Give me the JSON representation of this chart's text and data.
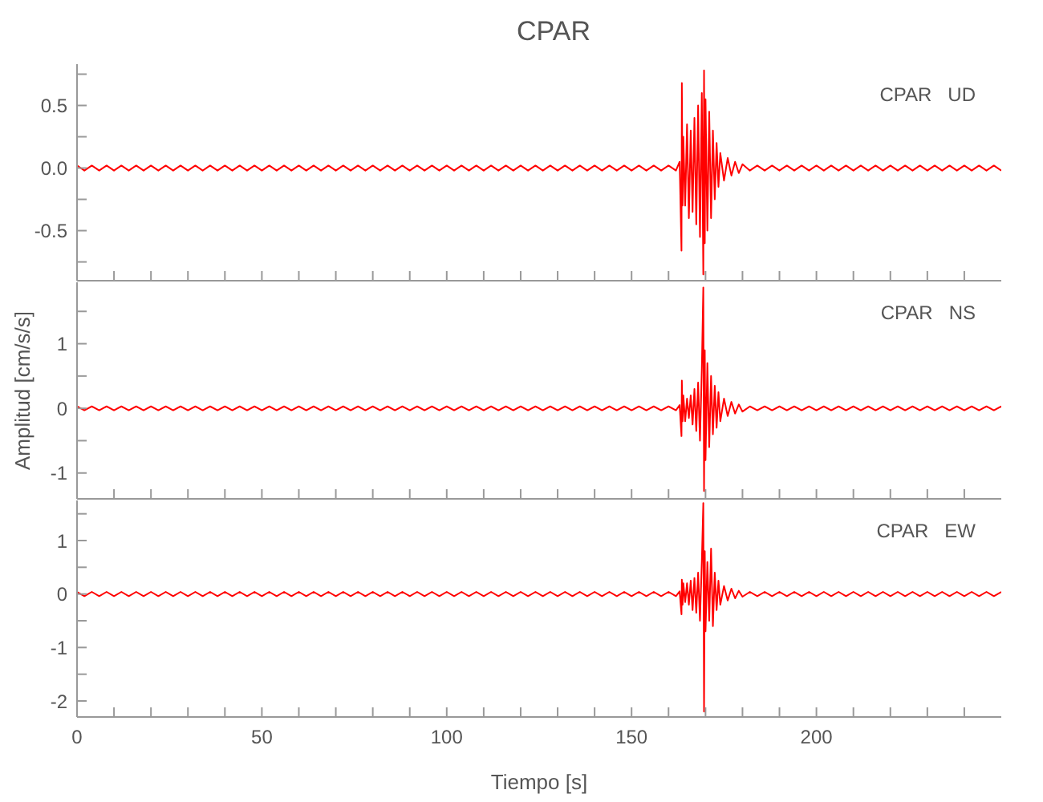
{
  "chart_data": [
    {
      "type": "line",
      "title": "CPAR",
      "annotations": [
        "CPAR   UD"
      ],
      "tick_labels": "y",
      "grid": false,
      "marker": "none",
      "line_style": "solid",
      "xlim": [
        0,
        250
      ],
      "xticks": [
        0,
        {
          "value": 10,
          "label": null
        },
        {
          "value": 20,
          "label": null
        },
        {
          "value": 30,
          "label": null
        },
        {
          "value": 40,
          "label": null
        },
        50,
        {
          "value": 60,
          "label": null
        },
        {
          "value": 70,
          "label": null
        },
        {
          "value": 80,
          "label": null
        },
        {
          "value": 90,
          "label": null
        },
        100,
        {
          "value": 110,
          "label": null
        },
        {
          "value": 120,
          "label": null
        },
        {
          "value": 130,
          "label": null
        },
        {
          "value": 140,
          "label": null
        },
        150,
        {
          "value": 160,
          "label": null
        },
        {
          "value": 170,
          "label": null
        },
        {
          "value": 180,
          "label": null
        },
        {
          "value": 190,
          "label": null
        },
        200,
        {
          "value": 210,
          "label": null
        },
        {
          "value": 220,
          "label": null
        },
        {
          "value": 230,
          "label": null
        },
        {
          "value": 240,
          "label": null
        }
      ],
      "ylim": [
        -0.9,
        0.83
      ],
      "yticks": [
        {
          "value": -0.75,
          "label": null
        },
        {
          "value": -0.5,
          "label": "-0.5"
        },
        {
          "value": -0.25,
          "label": null
        },
        {
          "value": 0,
          "label": "0.0"
        },
        {
          "value": 0.25,
          "label": null
        },
        {
          "value": 0.5,
          "label": "0.5"
        },
        {
          "value": 0.75,
          "label": null
        }
      ],
      "x": [
        0,
        2,
        4,
        6,
        8,
        10,
        12,
        14,
        16,
        18,
        20,
        22,
        24,
        26,
        28,
        30,
        32,
        34,
        36,
        38,
        40,
        42,
        44,
        46,
        48,
        50,
        52,
        54,
        56,
        58,
        60,
        62,
        64,
        66,
        68,
        70,
        72,
        74,
        76,
        78,
        80,
        82,
        84,
        86,
        88,
        90,
        92,
        94,
        96,
        98,
        100,
        102,
        104,
        106,
        108,
        110,
        112,
        114,
        116,
        118,
        120,
        122,
        124,
        126,
        128,
        130,
        132,
        134,
        136,
        138,
        140,
        142,
        144,
        146,
        148,
        150,
        152,
        154,
        156,
        158,
        160,
        162,
        163,
        163.5,
        163.6,
        163.8,
        164,
        164.5,
        165,
        165.5,
        166,
        166.5,
        167,
        167.5,
        168,
        168.5,
        169,
        169.4,
        169.6,
        169.8,
        170,
        170.5,
        171,
        171.5,
        172,
        172.5,
        173,
        173.5,
        174,
        175,
        176,
        177,
        178,
        179,
        180,
        182,
        184,
        186,
        188,
        190,
        192,
        194,
        196,
        198,
        200,
        202,
        204,
        206,
        208,
        210,
        212,
        214,
        216,
        218,
        220,
        222,
        224,
        226,
        228,
        230,
        232,
        234,
        236,
        238,
        240,
        242,
        244,
        246,
        248,
        250
      ],
      "series": [
        {
          "color": "#ff0000",
          "values": [
            0.02,
            -0.02,
            0.02,
            -0.02,
            0.02,
            -0.02,
            0.02,
            -0.02,
            0.02,
            -0.02,
            0.02,
            -0.02,
            0.02,
            -0.02,
            0.02,
            -0.02,
            0.02,
            -0.02,
            0.02,
            -0.02,
            0.02,
            -0.02,
            0.02,
            -0.02,
            0.02,
            -0.02,
            0.02,
            -0.02,
            0.02,
            -0.02,
            0.02,
            -0.02,
            0.02,
            -0.02,
            0.02,
            -0.02,
            0.02,
            -0.02,
            0.02,
            -0.02,
            0.02,
            -0.02,
            0.02,
            -0.02,
            0.02,
            -0.02,
            0.02,
            -0.02,
            0.02,
            -0.02,
            0.02,
            -0.02,
            0.02,
            -0.02,
            0.02,
            -0.02,
            0.02,
            -0.02,
            0.02,
            -0.02,
            0.02,
            -0.02,
            0.02,
            -0.02,
            0.02,
            -0.02,
            0.02,
            -0.02,
            0.02,
            -0.02,
            0.02,
            -0.02,
            0.02,
            -0.02,
            0.02,
            -0.02,
            0.02,
            -0.02,
            0.02,
            -0.02,
            0.02,
            -0.02,
            0.05,
            -0.66,
            0.68,
            -0.3,
            0.25,
            -0.3,
            0.35,
            -0.4,
            0.3,
            -0.35,
            0.4,
            -0.45,
            0.5,
            -0.55,
            0.6,
            -0.85,
            0.78,
            -0.6,
            0.55,
            -0.5,
            0.45,
            -0.4,
            0.3,
            -0.25,
            0.2,
            -0.15,
            0.12,
            -0.1,
            0.08,
            -0.06,
            0.05,
            -0.04,
            0.03,
            -0.02,
            0.02,
            -0.02,
            0.02,
            -0.02,
            0.02,
            -0.02,
            0.02,
            -0.02,
            0.02,
            -0.02,
            0.02,
            -0.02,
            0.02,
            -0.02,
            0.02,
            -0.02,
            0.02,
            -0.02,
            0.02,
            -0.02,
            0.02,
            -0.02,
            0.02,
            -0.02,
            0.02,
            -0.02,
            0.02,
            -0.02,
            0.02,
            -0.02,
            0.02,
            -0.02,
            0.02,
            -0.02
          ]
        }
      ]
    },
    {
      "type": "line",
      "ylabel": "Amplitud [cm/s/s]",
      "annotations": [
        "CPAR   NS"
      ],
      "tick_labels": "y",
      "grid": false,
      "marker": "none",
      "line_style": "solid",
      "xlim": [
        0,
        250
      ],
      "xticks": [
        0,
        {
          "value": 10,
          "label": null
        },
        {
          "value": 20,
          "label": null
        },
        {
          "value": 30,
          "label": null
        },
        {
          "value": 40,
          "label": null
        },
        50,
        {
          "value": 60,
          "label": null
        },
        {
          "value": 70,
          "label": null
        },
        {
          "value": 80,
          "label": null
        },
        {
          "value": 90,
          "label": null
        },
        100,
        {
          "value": 110,
          "label": null
        },
        {
          "value": 120,
          "label": null
        },
        {
          "value": 130,
          "label": null
        },
        {
          "value": 140,
          "label": null
        },
        150,
        {
          "value": 160,
          "label": null
        },
        {
          "value": 170,
          "label": null
        },
        {
          "value": 180,
          "label": null
        },
        {
          "value": 190,
          "label": null
        },
        200,
        {
          "value": 210,
          "label": null
        },
        {
          "value": 220,
          "label": null
        },
        {
          "value": 230,
          "label": null
        },
        {
          "value": 240,
          "label": null
        }
      ],
      "ylim": [
        -1.4,
        1.95
      ],
      "yticks": [
        {
          "value": -1,
          "label": "-1"
        },
        {
          "value": -0.5,
          "label": null
        },
        {
          "value": 0,
          "label": "0"
        },
        {
          "value": 0.5,
          "label": null
        },
        {
          "value": 1,
          "label": "1"
        },
        {
          "value": 1.5,
          "label": null
        }
      ],
      "x": [
        0,
        2,
        4,
        6,
        8,
        10,
        12,
        14,
        16,
        18,
        20,
        22,
        24,
        26,
        28,
        30,
        32,
        34,
        36,
        38,
        40,
        42,
        44,
        46,
        48,
        50,
        52,
        54,
        56,
        58,
        60,
        62,
        64,
        66,
        68,
        70,
        72,
        74,
        76,
        78,
        80,
        82,
        84,
        86,
        88,
        90,
        92,
        94,
        96,
        98,
        100,
        102,
        104,
        106,
        108,
        110,
        112,
        114,
        116,
        118,
        120,
        122,
        124,
        126,
        128,
        130,
        132,
        134,
        136,
        138,
        140,
        142,
        144,
        146,
        148,
        150,
        152,
        154,
        156,
        158,
        160,
        162,
        163,
        163.5,
        163.6,
        163.8,
        164,
        164.5,
        165,
        165.5,
        166,
        166.5,
        167,
        167.5,
        168,
        168.5,
        169,
        169.4,
        169.6,
        169.8,
        170,
        170.5,
        171,
        171.5,
        172,
        172.5,
        173,
        173.5,
        174,
        175,
        176,
        177,
        178,
        179,
        180,
        182,
        184,
        186,
        188,
        190,
        192,
        194,
        196,
        198,
        200,
        202,
        204,
        206,
        208,
        210,
        212,
        214,
        216,
        218,
        220,
        222,
        224,
        226,
        228,
        230,
        232,
        234,
        236,
        238,
        240,
        242,
        244,
        246,
        248,
        250
      ],
      "series": [
        {
          "color": "#ff0000",
          "values": [
            0.03,
            -0.03,
            0.03,
            -0.03,
            0.03,
            -0.03,
            0.03,
            -0.03,
            0.03,
            -0.03,
            0.03,
            -0.03,
            0.03,
            -0.03,
            0.03,
            -0.03,
            0.03,
            -0.03,
            0.03,
            -0.03,
            0.03,
            -0.03,
            0.03,
            -0.03,
            0.03,
            -0.03,
            0.03,
            -0.03,
            0.03,
            -0.03,
            0.03,
            -0.03,
            0.03,
            -0.03,
            0.03,
            -0.03,
            0.03,
            -0.03,
            0.03,
            -0.03,
            0.03,
            -0.03,
            0.03,
            -0.03,
            0.03,
            -0.03,
            0.03,
            -0.03,
            0.03,
            -0.03,
            0.03,
            -0.03,
            0.03,
            -0.03,
            0.03,
            -0.03,
            0.03,
            -0.03,
            0.03,
            -0.03,
            0.03,
            -0.03,
            0.03,
            -0.03,
            0.03,
            -0.03,
            0.03,
            -0.03,
            0.03,
            -0.03,
            0.03,
            -0.03,
            0.03,
            -0.03,
            0.03,
            -0.03,
            0.03,
            -0.03,
            0.03,
            -0.03,
            0.03,
            -0.03,
            0.05,
            -0.43,
            0.43,
            -0.2,
            0.2,
            -0.2,
            0.15,
            -0.15,
            0.2,
            -0.25,
            0.3,
            -0.35,
            0.4,
            -0.5,
            0.6,
            1.87,
            -1.28,
            0.9,
            -0.8,
            0.7,
            -0.6,
            0.5,
            -0.4,
            0.35,
            -0.3,
            0.25,
            -0.2,
            0.15,
            -0.12,
            0.1,
            -0.08,
            0.06,
            -0.05,
            0.03,
            -0.03,
            0.03,
            -0.03,
            0.03,
            -0.03,
            0.03,
            -0.03,
            0.03,
            -0.03,
            0.03,
            -0.03,
            0.03,
            -0.03,
            0.03,
            -0.03,
            0.03,
            -0.03,
            0.03,
            -0.03,
            0.03,
            -0.03,
            0.03,
            -0.03,
            0.03,
            -0.03,
            0.03,
            -0.03,
            0.03,
            -0.03,
            0.03,
            -0.03,
            0.03,
            -0.03,
            0.03
          ]
        }
      ]
    },
    {
      "type": "line",
      "xlabel": "Tiempo [s]",
      "annotations": [
        "CPAR   EW"
      ],
      "grid": false,
      "marker": "none",
      "line_style": "solid",
      "xlim": [
        0,
        250
      ],
      "xticks": [
        0,
        {
          "value": 10,
          "label": null
        },
        {
          "value": 20,
          "label": null
        },
        {
          "value": 30,
          "label": null
        },
        {
          "value": 40,
          "label": null
        },
        50,
        {
          "value": 60,
          "label": null
        },
        {
          "value": 70,
          "label": null
        },
        {
          "value": 80,
          "label": null
        },
        {
          "value": 90,
          "label": null
        },
        100,
        {
          "value": 110,
          "label": null
        },
        {
          "value": 120,
          "label": null
        },
        {
          "value": 130,
          "label": null
        },
        {
          "value": 140,
          "label": null
        },
        150,
        {
          "value": 160,
          "label": null
        },
        {
          "value": 170,
          "label": null
        },
        {
          "value": 180,
          "label": null
        },
        {
          "value": 190,
          "label": null
        },
        200,
        {
          "value": 210,
          "label": null
        },
        {
          "value": 220,
          "label": null
        },
        {
          "value": 230,
          "label": null
        },
        {
          "value": 240,
          "label": null
        }
      ],
      "ylim": [
        -2.3,
        1.75
      ],
      "yticks": [
        {
          "value": -2,
          "label": "-2"
        },
        {
          "value": -1.5,
          "label": null
        },
        {
          "value": -1,
          "label": "-1"
        },
        {
          "value": -0.5,
          "label": null
        },
        {
          "value": 0,
          "label": "0"
        },
        {
          "value": 0.5,
          "label": null
        },
        {
          "value": 1,
          "label": "1"
        },
        {
          "value": 1.5,
          "label": null
        }
      ],
      "x": [
        0,
        2,
        4,
        6,
        8,
        10,
        12,
        14,
        16,
        18,
        20,
        22,
        24,
        26,
        28,
        30,
        32,
        34,
        36,
        38,
        40,
        42,
        44,
        46,
        48,
        50,
        52,
        54,
        56,
        58,
        60,
        62,
        64,
        66,
        68,
        70,
        72,
        74,
        76,
        78,
        80,
        82,
        84,
        86,
        88,
        90,
        92,
        94,
        96,
        98,
        100,
        102,
        104,
        106,
        108,
        110,
        112,
        114,
        116,
        118,
        120,
        122,
        124,
        126,
        128,
        130,
        132,
        134,
        136,
        138,
        140,
        142,
        144,
        146,
        148,
        150,
        152,
        154,
        156,
        158,
        160,
        162,
        163,
        163.5,
        163.6,
        163.8,
        164,
        164.5,
        165,
        165.5,
        166,
        166.5,
        167,
        167.5,
        168,
        168.5,
        169,
        169.4,
        169.6,
        169.8,
        170,
        170.5,
        171,
        171.5,
        172,
        172.5,
        173,
        173.5,
        174,
        175,
        176,
        177,
        178,
        179,
        180,
        182,
        184,
        186,
        188,
        190,
        192,
        194,
        196,
        198,
        200,
        202,
        204,
        206,
        208,
        210,
        212,
        214,
        216,
        218,
        220,
        222,
        224,
        226,
        228,
        230,
        232,
        234,
        236,
        238,
        240,
        242,
        244,
        246,
        248,
        250
      ],
      "series": [
        {
          "color": "#ff0000",
          "values": [
            0.04,
            -0.04,
            0.04,
            -0.04,
            0.04,
            -0.04,
            0.04,
            -0.04,
            0.04,
            -0.04,
            0.04,
            -0.04,
            0.04,
            -0.04,
            0.04,
            -0.04,
            0.04,
            -0.04,
            0.04,
            -0.04,
            0.04,
            -0.04,
            0.04,
            -0.04,
            0.04,
            -0.04,
            0.04,
            -0.04,
            0.04,
            -0.04,
            0.04,
            -0.04,
            0.04,
            -0.04,
            0.04,
            -0.04,
            0.04,
            -0.04,
            0.04,
            -0.04,
            0.04,
            -0.04,
            0.04,
            -0.04,
            0.04,
            -0.04,
            0.04,
            -0.04,
            0.04,
            -0.04,
            0.04,
            -0.04,
            0.04,
            -0.04,
            0.04,
            -0.04,
            0.04,
            -0.04,
            0.04,
            -0.04,
            0.04,
            -0.04,
            0.04,
            -0.04,
            0.04,
            -0.04,
            0.04,
            -0.04,
            0.04,
            -0.04,
            0.04,
            -0.04,
            0.04,
            -0.04,
            0.04,
            -0.04,
            0.04,
            -0.04,
            0.04,
            -0.04,
            0.04,
            -0.04,
            0.05,
            -0.38,
            0.27,
            -0.2,
            0.2,
            -0.15,
            0.2,
            -0.2,
            0.25,
            -0.3,
            0.3,
            -0.35,
            0.4,
            -0.5,
            0.6,
            1.7,
            -2.2,
            0.8,
            -0.7,
            0.6,
            -0.5,
            0.85,
            -0.6,
            0.4,
            -0.3,
            0.25,
            -0.2,
            0.15,
            -0.12,
            0.1,
            -0.08,
            0.06,
            -0.05,
            0.04,
            -0.04,
            0.04,
            -0.04,
            0.04,
            -0.04,
            0.04,
            -0.04,
            0.04,
            -0.04,
            0.04,
            -0.04,
            0.04,
            -0.04,
            0.04,
            -0.04,
            0.04,
            -0.04,
            0.04,
            -0.04,
            0.04,
            -0.04,
            0.04,
            -0.04,
            0.04,
            -0.04,
            0.04,
            -0.04,
            0.04,
            -0.04,
            0.04,
            -0.04,
            0.04,
            -0.04,
            0.04
          ]
        }
      ]
    }
  ]
}
